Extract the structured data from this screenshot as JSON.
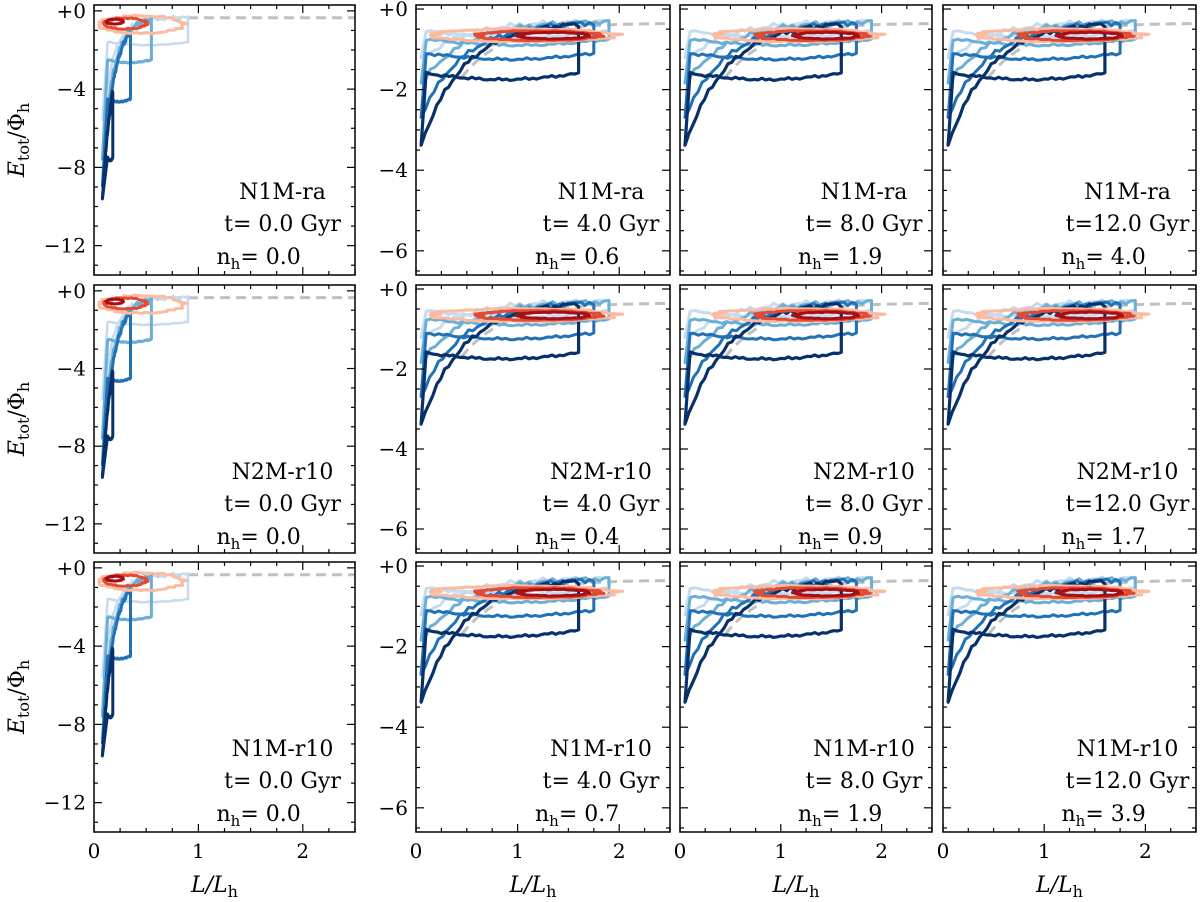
{
  "figure": {
    "ylabel_main": "E",
    "ylabel_sub": "tot",
    "ylabel_rest": "/Φ",
    "ylabel_sub2": "h",
    "xlabel_main": "L/L",
    "xlabel_sub": "h",
    "nh_label": "n",
    "nh_sub": "h",
    "colors": {
      "N1M-ra": "#41b6a4",
      "N2M-r10": "#1a6670",
      "N1M-r10": "#8c2a0e",
      "dashed_curve": "#c0c0c0",
      "red_dark": "#a50f15",
      "red_mid": "#e34a33",
      "red_light": "#fcbba1",
      "blue_dark": "#08306b",
      "blue_mid": "#2171b5",
      "blue_light": "#6baed6",
      "blue_pale": "#c6dbef"
    }
  },
  "chart_data": [
    {
      "type": "line",
      "row": 0,
      "col": 0,
      "model": "N1M-ra",
      "time_text": "t= 0.0 Gyr",
      "nh_value": "= 0.0",
      "xlim": [
        0,
        2.5
      ],
      "ylim": [
        -13.5,
        0.3
      ],
      "xticks": [],
      "yticks": [
        "+0",
        "−4",
        "−8",
        "−12"
      ],
      "ytick_values": [
        0,
        -4,
        -8,
        -12
      ],
      "xlabel": "",
      "ylabel": "E_tot/Φ_h"
    },
    {
      "type": "line",
      "row": 0,
      "col": 1,
      "model": "N1M-ra",
      "time_text": "t= 4.0 Gyr",
      "nh_value": "= 0.6",
      "xlim": [
        0,
        2.5
      ],
      "ylim": [
        -6.6,
        0.1
      ],
      "xticks": [],
      "yticks": [
        "+0",
        "−2",
        "−4",
        "−6"
      ],
      "ytick_values": [
        0,
        -2,
        -4,
        -6
      ],
      "xlabel": "",
      "ylabel": ""
    },
    {
      "type": "line",
      "row": 0,
      "col": 2,
      "model": "N1M-ra",
      "time_text": "t= 8.0 Gyr",
      "nh_value": "= 1.9",
      "xlim": [
        0,
        2.5
      ],
      "ylim": [
        -6.6,
        0.1
      ],
      "xticks": [],
      "yticks": [],
      "ytick_values": [],
      "xlabel": "",
      "ylabel": ""
    },
    {
      "type": "line",
      "row": 0,
      "col": 3,
      "model": "N1M-ra",
      "time_text": "t=12.0 Gyr",
      "nh_value": "= 4.0",
      "xlim": [
        0,
        2.5
      ],
      "ylim": [
        -6.6,
        0.1
      ],
      "xticks": [],
      "yticks": [],
      "ytick_values": [],
      "xlabel": "",
      "ylabel": ""
    },
    {
      "type": "line",
      "row": 1,
      "col": 0,
      "model": "N2M-r10",
      "time_text": "t= 0.0 Gyr",
      "nh_value": "= 0.0",
      "xlim": [
        0,
        2.5
      ],
      "ylim": [
        -13.5,
        0.3
      ],
      "xticks": [],
      "yticks": [
        "+0",
        "−4",
        "−8",
        "−12"
      ],
      "ytick_values": [
        0,
        -4,
        -8,
        -12
      ],
      "xlabel": "",
      "ylabel": "E_tot/Φ_h"
    },
    {
      "type": "line",
      "row": 1,
      "col": 1,
      "model": "N2M-r10",
      "time_text": "t= 4.0 Gyr",
      "nh_value": "= 0.4",
      "xlim": [
        0,
        2.5
      ],
      "ylim": [
        -6.6,
        0.1
      ],
      "xticks": [],
      "yticks": [
        "+0",
        "−2",
        "−4",
        "−6"
      ],
      "ytick_values": [
        0,
        -2,
        -4,
        -6
      ],
      "xlabel": "",
      "ylabel": ""
    },
    {
      "type": "line",
      "row": 1,
      "col": 2,
      "model": "N2M-r10",
      "time_text": "t= 8.0 Gyr",
      "nh_value": "= 0.9",
      "xlim": [
        0,
        2.5
      ],
      "ylim": [
        -6.6,
        0.1
      ],
      "xticks": [],
      "yticks": [],
      "ytick_values": [],
      "xlabel": "",
      "ylabel": ""
    },
    {
      "type": "line",
      "row": 1,
      "col": 3,
      "model": "N2M-r10",
      "time_text": "t=12.0 Gyr",
      "nh_value": "= 1.7",
      "xlim": [
        0,
        2.5
      ],
      "ylim": [
        -6.6,
        0.1
      ],
      "xticks": [],
      "yticks": [],
      "ytick_values": [],
      "xlabel": "",
      "ylabel": ""
    },
    {
      "type": "line",
      "row": 2,
      "col": 0,
      "model": "N1M-r10",
      "time_text": "t= 0.0 Gyr",
      "nh_value": "= 0.0",
      "xlim": [
        0,
        2.5
      ],
      "ylim": [
        -13.5,
        0.3
      ],
      "xticks": [
        "0",
        "1",
        "2"
      ],
      "xtick_values": [
        0,
        1,
        2
      ],
      "yticks": [
        "+0",
        "−4",
        "−8",
        "−12"
      ],
      "ytick_values": [
        0,
        -4,
        -8,
        -12
      ],
      "xlabel": "L/L_h",
      "ylabel": "E_tot/Φ_h"
    },
    {
      "type": "line",
      "row": 2,
      "col": 1,
      "model": "N1M-r10",
      "time_text": "t= 4.0 Gyr",
      "nh_value": "= 0.7",
      "xlim": [
        0,
        2.5
      ],
      "ylim": [
        -6.6,
        0.1
      ],
      "xticks": [
        "0",
        "1",
        "2"
      ],
      "xtick_values": [
        0,
        1,
        2
      ],
      "yticks": [
        "+0",
        "−2",
        "−4",
        "−6"
      ],
      "ytick_values": [
        0,
        -2,
        -4,
        -6
      ],
      "xlabel": "L/L_h",
      "ylabel": ""
    },
    {
      "type": "line",
      "row": 2,
      "col": 2,
      "model": "N1M-r10",
      "time_text": "t= 8.0 Gyr",
      "nh_value": "= 1.9",
      "xlim": [
        0,
        2.5
      ],
      "ylim": [
        -6.6,
        0.1
      ],
      "xticks": [
        "0",
        "1",
        "2"
      ],
      "xtick_values": [
        0,
        1,
        2
      ],
      "yticks": [],
      "ytick_values": [],
      "xlabel": "L/L_h",
      "ylabel": ""
    },
    {
      "type": "line",
      "row": 2,
      "col": 3,
      "model": "N1M-r10",
      "time_text": "t=12.0 Gyr",
      "nh_value": "= 3.9",
      "xlim": [
        0,
        2.5
      ],
      "ylim": [
        -6.6,
        0.1
      ],
      "xticks": [
        "0",
        "1",
        "2"
      ],
      "xtick_values": [
        0,
        1,
        2
      ],
      "yticks": [],
      "ytick_values": [],
      "xlabel": "L/L_h",
      "ylabel": ""
    }
  ]
}
